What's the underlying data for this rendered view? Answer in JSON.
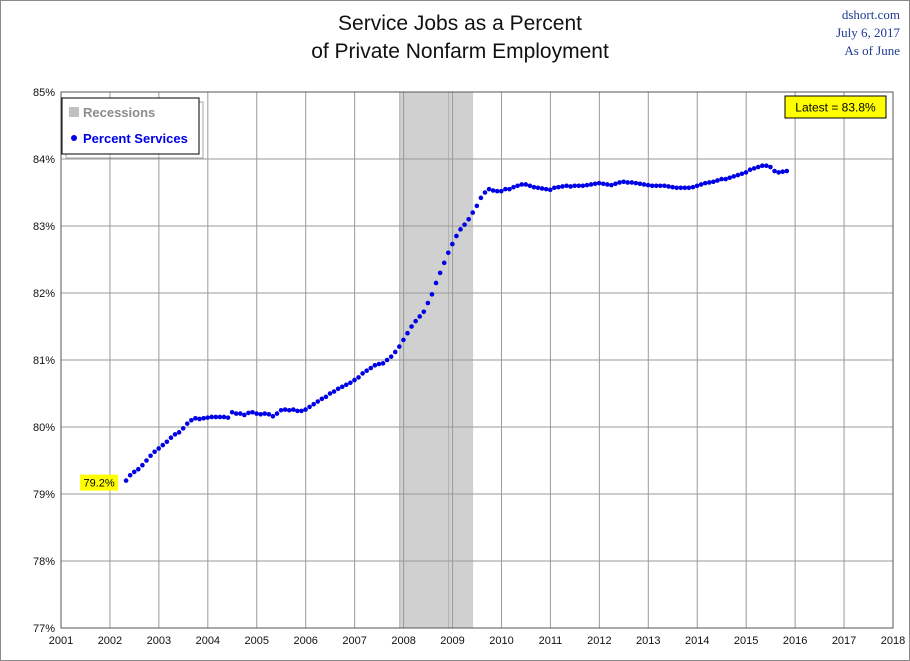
{
  "header": {
    "title_line1": "Service Jobs as a Percent",
    "title_line2": "of Private Nonfarm Employment",
    "source": "dshort.com",
    "date": "July 6, 2017",
    "as_of": "As of June"
  },
  "colors": {
    "series": "#0000e6",
    "recession": "#d0d0d0",
    "callout": "#ffff00",
    "grid": "#9a9a9a"
  },
  "chart_data": {
    "type": "scatter",
    "title": "Service Jobs as a Percent of Private Nonfarm Employment",
    "xlabel": "",
    "ylabel": "",
    "xlim": [
      2001,
      2018
    ],
    "ylim": [
      77,
      85
    ],
    "x_ticks": [
      2001,
      2002,
      2003,
      2004,
      2005,
      2006,
      2007,
      2008,
      2009,
      2010,
      2011,
      2012,
      2013,
      2014,
      2015,
      2016,
      2017,
      2018
    ],
    "x_tick_labels": [
      "2001",
      "2002",
      "2003",
      "2004",
      "2005",
      "2006",
      "2007",
      "2008",
      "2009",
      "2010",
      "2011",
      "2012",
      "2013",
      "2014",
      "2015",
      "2016",
      "2017",
      "2018"
    ],
    "y_ticks": [
      77,
      78,
      79,
      80,
      81,
      82,
      83,
      84,
      85
    ],
    "y_tick_labels": [
      "77%",
      "78%",
      "79%",
      "80%",
      "81%",
      "82%",
      "83%",
      "84%",
      "85%"
    ],
    "grid": true,
    "legend": {
      "placement": "top-left",
      "entries": [
        {
          "label": "Recessions",
          "marker": "square",
          "color": "#c0c0c0"
        },
        {
          "label": "Percent Services",
          "marker": "dot",
          "color": "#0000e6"
        }
      ]
    },
    "recessions": [
      {
        "start": 2007.92,
        "end": 2009.42
      }
    ],
    "recession_lines": [
      2007.92,
      2008.92
    ],
    "annotations": {
      "first": {
        "label": "79.2%",
        "x": 2002.33,
        "y": 79.2
      },
      "latest": {
        "label": "Latest = 83.8%",
        "placement": "top-right"
      }
    },
    "series": [
      {
        "name": "Percent Services",
        "x_start": 2002.33,
        "x_step": 0.08333,
        "values": [
          79.2,
          79.28,
          79.33,
          79.37,
          79.43,
          79.5,
          79.57,
          79.63,
          79.68,
          79.73,
          79.78,
          79.84,
          79.89,
          79.92,
          79.98,
          80.05,
          80.1,
          80.13,
          80.12,
          80.13,
          80.14,
          80.15,
          80.15,
          80.15,
          80.15,
          80.14,
          80.22,
          80.2,
          80.2,
          80.18,
          80.21,
          80.22,
          80.2,
          80.19,
          80.2,
          80.19,
          80.16,
          80.2,
          80.25,
          80.26,
          80.25,
          80.26,
          80.24,
          80.24,
          80.26,
          80.3,
          80.34,
          80.38,
          80.42,
          80.45,
          80.5,
          80.53,
          80.57,
          80.6,
          80.63,
          80.66,
          80.7,
          80.74,
          80.8,
          80.84,
          80.88,
          80.92,
          80.94,
          80.95,
          81.0,
          81.05,
          81.12,
          81.2,
          81.3,
          81.4,
          81.5,
          81.58,
          81.65,
          81.72,
          81.85,
          81.98,
          82.15,
          82.3,
          82.45,
          82.6,
          82.73,
          82.85,
          82.95,
          83.02,
          83.1,
          83.2,
          83.3,
          83.42,
          83.5,
          83.55,
          83.53,
          83.52,
          83.52,
          83.55,
          83.55,
          83.58,
          83.6,
          83.62,
          83.62,
          83.6,
          83.58,
          83.57,
          83.56,
          83.55,
          83.54,
          83.57,
          83.58,
          83.59,
          83.6,
          83.59,
          83.6,
          83.6,
          83.6,
          83.61,
          83.62,
          83.63,
          83.64,
          83.63,
          83.62,
          83.61,
          83.63,
          83.65,
          83.66,
          83.65,
          83.65,
          83.64,
          83.63,
          83.62,
          83.61,
          83.6,
          83.6,
          83.6,
          83.6,
          83.59,
          83.58,
          83.57,
          83.57,
          83.57,
          83.57,
          83.58,
          83.6,
          83.62,
          83.64,
          83.65,
          83.66,
          83.68,
          83.7,
          83.7,
          83.72,
          83.74,
          83.76,
          83.78,
          83.8,
          83.84,
          83.86,
          83.88,
          83.9,
          83.9,
          83.88,
          83.82,
          83.8,
          83.81,
          83.82
        ]
      }
    ]
  }
}
